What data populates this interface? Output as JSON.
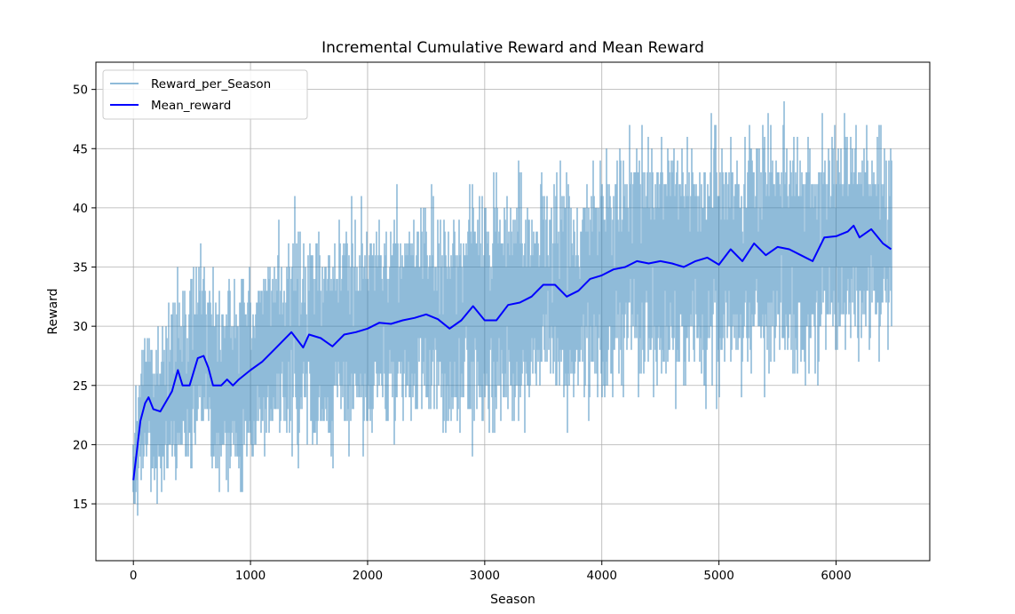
{
  "chart_data": {
    "type": "line",
    "title": "Incremental Cumulative Reward and Mean Reward",
    "xlabel": "Season",
    "ylabel": "Reward",
    "xlim": [
      -320,
      6800
    ],
    "ylim": [
      10.2,
      52.3
    ],
    "xticks": [
      0,
      1000,
      2000,
      3000,
      4000,
      5000,
      6000
    ],
    "yticks": [
      15,
      20,
      25,
      30,
      35,
      40,
      45,
      50
    ],
    "grid": true,
    "legend": "top-left",
    "n_points": 6470,
    "series": [
      {
        "name": "Reward_per_Season",
        "color": "#1f77b4",
        "opacity": 0.5,
        "style": "noisy integer rewards fluctuating around the mean curve",
        "spread_envelope": [
          [
            0,
            4
          ],
          [
            500,
            7
          ],
          [
            2000,
            7.5
          ],
          [
            4000,
            8
          ],
          [
            5000,
            8.5
          ],
          [
            6470,
            7.5
          ]
        ],
        "range_min": 12,
        "range_max": 50.3
      },
      {
        "name": "Mean_reward",
        "color": "#0000ff",
        "x": [
          0,
          30,
          60,
          100,
          130,
          170,
          230,
          300,
          330,
          380,
          420,
          480,
          550,
          600,
          640,
          680,
          750,
          800,
          850,
          900,
          1000,
          1100,
          1200,
          1350,
          1450,
          1500,
          1600,
          1700,
          1800,
          1900,
          2000,
          2100,
          2200,
          2300,
          2400,
          2500,
          2600,
          2700,
          2800,
          2900,
          3000,
          3100,
          3200,
          3300,
          3400,
          3500,
          3600,
          3700,
          3800,
          3900,
          4000,
          4100,
          4200,
          4300,
          4400,
          4500,
          4600,
          4700,
          4800,
          4900,
          5000,
          5100,
          5200,
          5300,
          5400,
          5500,
          5600,
          5700,
          5800,
          5900,
          6000,
          6100,
          6150,
          6200,
          6300,
          6400,
          6470
        ],
        "y": [
          17,
          19.5,
          22,
          23.5,
          24,
          23,
          22.8,
          24,
          24.5,
          26.3,
          25,
          25,
          27.3,
          27.5,
          26.5,
          25,
          25,
          25.5,
          25,
          25.5,
          26.3,
          27,
          28,
          29.5,
          28.2,
          29.3,
          29,
          28.3,
          29.3,
          29.5,
          29.8,
          30.3,
          30.2,
          30.5,
          30.7,
          31,
          30.6,
          29.8,
          30.5,
          31.7,
          30.5,
          30.5,
          31.8,
          32,
          32.5,
          33.5,
          33.5,
          32.5,
          33,
          34,
          34.3,
          34.8,
          35,
          35.5,
          35.3,
          35.5,
          35.3,
          35,
          35.5,
          35.8,
          35.2,
          36.5,
          35.5,
          37,
          36,
          36.7,
          36.5,
          36,
          35.5,
          37.5,
          37.6,
          38,
          38.5,
          37.5,
          38.2,
          37,
          36.5
        ]
      }
    ]
  }
}
